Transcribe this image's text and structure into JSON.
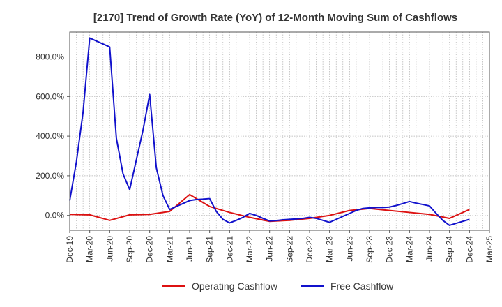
{
  "chart_data": {
    "type": "line",
    "title": "[2170]  Trend of Growth Rate (YoY) of 12-Month Moving Sum of Cashflows",
    "xlabel": "",
    "ylabel": "",
    "x_tick_labels": [
      "Dec-19",
      "Mar-20",
      "Jun-20",
      "Sep-20",
      "Dec-20",
      "Mar-21",
      "Jun-21",
      "Sep-21",
      "Dec-21",
      "Mar-22",
      "Jun-22",
      "Sep-22",
      "Dec-22",
      "Mar-23",
      "Jun-23",
      "Sep-23",
      "Dec-23",
      "Mar-24",
      "Jun-24",
      "Sep-24",
      "Dec-24",
      "Mar-25"
    ],
    "y_ticks": [
      0,
      200,
      400,
      600,
      800
    ],
    "y_tick_labels": [
      "0.0%",
      "200.0%",
      "400.0%",
      "600.0%",
      "800.0%"
    ],
    "ylim": [
      -75,
      925
    ],
    "x_range_months": [
      0,
      63
    ],
    "grid": true,
    "legend_position": "bottom-center",
    "series": [
      {
        "name": "Operating Cashflow",
        "color": "#dd1111",
        "x": [
          0,
          3,
          6,
          9,
          12,
          15,
          18,
          21,
          24,
          27,
          30,
          33,
          36,
          39,
          42,
          45,
          48,
          51,
          54,
          57,
          60
        ],
        "values": [
          5,
          3,
          -25,
          3,
          5,
          20,
          105,
          45,
          15,
          -10,
          -30,
          -25,
          -15,
          0,
          25,
          35,
          25,
          15,
          5,
          -15,
          30
        ]
      },
      {
        "name": "Free Cashflow",
        "color": "#1111cc",
        "x": [
          0,
          1,
          2,
          3,
          4,
          5,
          6,
          7,
          8,
          9,
          10,
          11,
          12,
          13,
          14,
          15,
          16,
          17,
          18,
          19,
          20,
          21,
          22,
          23,
          24,
          25,
          26,
          27,
          28,
          29,
          30,
          31,
          32,
          33,
          34,
          35,
          36,
          37,
          38,
          39,
          40,
          41,
          42,
          43,
          44,
          45,
          46,
          47,
          48,
          49,
          50,
          51,
          52,
          53,
          54,
          55,
          56,
          57,
          58,
          59,
          60
        ],
        "values": [
          75,
          270,
          520,
          895,
          880,
          865,
          850,
          390,
          210,
          130,
          280,
          430,
          610,
          240,
          100,
          30,
          45,
          60,
          75,
          80,
          82,
          85,
          20,
          -20,
          -38,
          -25,
          -10,
          10,
          0,
          -15,
          -28,
          -26,
          -22,
          -20,
          -18,
          -15,
          -10,
          -15,
          -25,
          -35,
          -20,
          -5,
          10,
          25,
          35,
          38,
          40,
          40,
          42,
          50,
          60,
          70,
          62,
          55,
          48,
          10,
          -25,
          -50,
          -40,
          -30,
          -20
        ]
      }
    ]
  }
}
